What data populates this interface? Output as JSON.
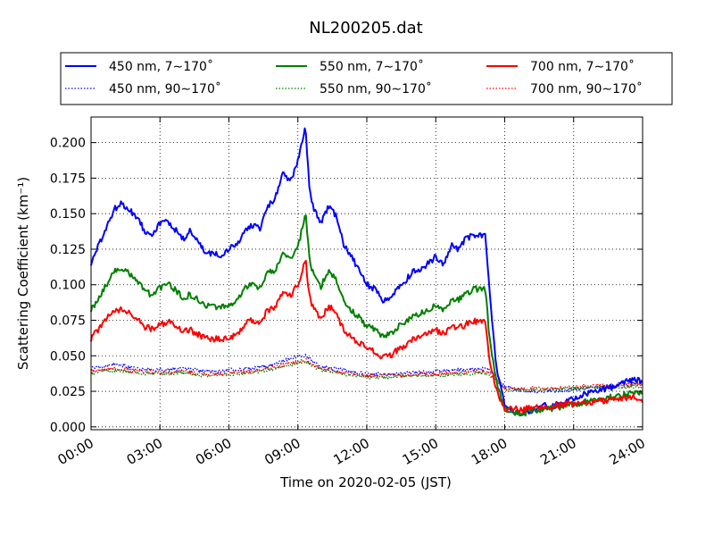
{
  "chart_data": {
    "type": "line",
    "title": "NL200205.dat",
    "xlabel": "Time on 2020-02-05 (JST)",
    "ylabel": "Scattering Coefficient (km⁻¹)",
    "xlim": [
      "00:00",
      "24:00"
    ],
    "ylim": [
      -0.002,
      0.218
    ],
    "x_ticks": [
      "00:00",
      "03:00",
      "06:00",
      "09:00",
      "12:00",
      "15:00",
      "18:00",
      "21:00",
      "24:00"
    ],
    "y_ticks": [
      "0.000",
      "0.025",
      "0.050",
      "0.075",
      "0.100",
      "0.125",
      "0.150",
      "0.175",
      "0.200"
    ],
    "grid": true,
    "legend_position": "top",
    "series": [
      {
        "name": "450 nm, 7∼170˚",
        "color": "#0000ff",
        "style": "solid",
        "x": [
          "00:00",
          "00:40",
          "01:00",
          "01:20",
          "02:00",
          "02:20",
          "02:40",
          "03:00",
          "03:20",
          "04:00",
          "04:20",
          "05:00",
          "05:40",
          "06:00",
          "06:20",
          "06:40",
          "07:00",
          "07:20",
          "07:40",
          "08:00",
          "08:20",
          "08:40",
          "09:00",
          "09:10",
          "09:20",
          "09:30",
          "09:40",
          "10:00",
          "10:20",
          "10:40",
          "11:00",
          "11:20",
          "11:40",
          "12:00",
          "12:20",
          "12:40",
          "13:00",
          "13:20",
          "13:40",
          "14:00",
          "14:20",
          "15:00",
          "15:20",
          "15:40",
          "16:00",
          "16:20",
          "16:40",
          "17:00",
          "17:10",
          "17:20",
          "17:40",
          "18:00",
          "18:20",
          "18:40",
          "19:00",
          "19:40",
          "20:00",
          "20:40",
          "21:00",
          "21:40",
          "22:00",
          "22:40",
          "23:00",
          "23:20",
          "23:40",
          "24:00"
        ],
        "y": [
          0.115,
          0.14,
          0.153,
          0.157,
          0.148,
          0.138,
          0.136,
          0.143,
          0.145,
          0.132,
          0.138,
          0.122,
          0.121,
          0.125,
          0.128,
          0.137,
          0.142,
          0.139,
          0.155,
          0.16,
          0.178,
          0.172,
          0.188,
          0.2,
          0.21,
          0.168,
          0.155,
          0.143,
          0.155,
          0.148,
          0.128,
          0.12,
          0.11,
          0.1,
          0.097,
          0.089,
          0.09,
          0.098,
          0.102,
          0.11,
          0.11,
          0.12,
          0.115,
          0.128,
          0.125,
          0.133,
          0.135,
          0.135,
          0.135,
          0.095,
          0.038,
          0.015,
          0.012,
          0.01,
          0.01,
          0.015,
          0.014,
          0.018,
          0.02,
          0.024,
          0.025,
          0.028,
          0.03,
          0.032,
          0.034,
          0.032
        ]
      },
      {
        "name": "450 nm, 90∼170˚",
        "color": "#0000ff",
        "style": "dotted",
        "x": [
          "00:00",
          "01:00",
          "02:00",
          "03:00",
          "04:00",
          "05:00",
          "06:00",
          "07:00",
          "08:00",
          "09:00",
          "09:20",
          "10:00",
          "11:00",
          "12:00",
          "13:00",
          "14:00",
          "15:00",
          "16:00",
          "17:00",
          "17:20",
          "18:00",
          "19:00",
          "20:00",
          "21:00",
          "22:00",
          "23:00",
          "24:00"
        ],
        "y": [
          0.041,
          0.044,
          0.041,
          0.04,
          0.041,
          0.039,
          0.04,
          0.041,
          0.044,
          0.05,
          0.05,
          0.042,
          0.04,
          0.037,
          0.037,
          0.038,
          0.039,
          0.04,
          0.041,
          0.04,
          0.028,
          0.025,
          0.025,
          0.026,
          0.028,
          0.03,
          0.032
        ]
      },
      {
        "name": "550 nm, 7∼170˚",
        "color": "#008000",
        "style": "solid",
        "x": [
          "00:00",
          "00:40",
          "01:00",
          "01:20",
          "02:00",
          "02:20",
          "02:40",
          "03:00",
          "03:20",
          "04:00",
          "04:20",
          "05:00",
          "05:40",
          "06:00",
          "06:20",
          "06:40",
          "07:00",
          "07:20",
          "07:40",
          "08:00",
          "08:20",
          "08:40",
          "09:00",
          "09:10",
          "09:20",
          "09:30",
          "09:40",
          "10:00",
          "10:20",
          "10:40",
          "11:00",
          "11:20",
          "11:40",
          "12:00",
          "12:20",
          "12:40",
          "13:00",
          "13:20",
          "13:40",
          "14:00",
          "14:20",
          "15:00",
          "15:20",
          "15:40",
          "16:00",
          "16:20",
          "16:40",
          "17:00",
          "17:10",
          "17:20",
          "17:40",
          "18:00",
          "18:20",
          "18:40",
          "19:00",
          "19:40",
          "20:00",
          "20:40",
          "21:00",
          "21:40",
          "22:00",
          "22:40",
          "23:00",
          "23:20",
          "23:40",
          "24:00"
        ],
        "y": [
          0.082,
          0.1,
          0.109,
          0.111,
          0.104,
          0.095,
          0.093,
          0.098,
          0.101,
          0.091,
          0.093,
          0.085,
          0.084,
          0.086,
          0.088,
          0.097,
          0.1,
          0.097,
          0.108,
          0.11,
          0.122,
          0.118,
          0.126,
          0.138,
          0.152,
          0.118,
          0.108,
          0.099,
          0.11,
          0.104,
          0.088,
          0.082,
          0.077,
          0.071,
          0.069,
          0.064,
          0.065,
          0.07,
          0.073,
          0.078,
          0.08,
          0.085,
          0.082,
          0.089,
          0.09,
          0.094,
          0.097,
          0.097,
          0.097,
          0.062,
          0.03,
          0.012,
          0.01,
          0.009,
          0.01,
          0.013,
          0.013,
          0.015,
          0.016,
          0.018,
          0.019,
          0.021,
          0.022,
          0.023,
          0.024,
          0.023
        ]
      },
      {
        "name": "550 nm, 90∼170˚",
        "color": "#008000",
        "style": "dotted",
        "x": [
          "00:00",
          "01:00",
          "02:00",
          "03:00",
          "04:00",
          "05:00",
          "06:00",
          "07:00",
          "08:00",
          "09:00",
          "09:20",
          "10:00",
          "11:00",
          "12:00",
          "13:00",
          "14:00",
          "15:00",
          "16:00",
          "17:00",
          "17:20",
          "18:00",
          "19:00",
          "20:00",
          "21:00",
          "22:00",
          "23:00",
          "24:00"
        ],
        "y": [
          0.038,
          0.04,
          0.038,
          0.037,
          0.038,
          0.036,
          0.037,
          0.038,
          0.041,
          0.045,
          0.046,
          0.04,
          0.037,
          0.035,
          0.035,
          0.036,
          0.036,
          0.037,
          0.038,
          0.037,
          0.026,
          0.026,
          0.026,
          0.027,
          0.028,
          0.028,
          0.029
        ]
      },
      {
        "name": "700 nm, 7∼170˚",
        "color": "#ff0000",
        "style": "solid",
        "x": [
          "00:00",
          "00:40",
          "01:00",
          "01:20",
          "02:00",
          "02:20",
          "02:40",
          "03:00",
          "03:20",
          "04:00",
          "04:20",
          "05:00",
          "05:40",
          "06:00",
          "06:20",
          "06:40",
          "07:00",
          "07:20",
          "07:40",
          "08:00",
          "08:20",
          "08:40",
          "09:00",
          "09:10",
          "09:20",
          "09:30",
          "09:40",
          "10:00",
          "10:20",
          "10:40",
          "11:00",
          "11:20",
          "11:40",
          "12:00",
          "12:20",
          "12:40",
          "13:00",
          "13:20",
          "13:40",
          "14:00",
          "14:20",
          "15:00",
          "15:20",
          "15:40",
          "16:00",
          "16:20",
          "16:40",
          "17:00",
          "17:10",
          "17:20",
          "17:40",
          "18:00",
          "18:20",
          "18:40",
          "19:00",
          "19:40",
          "20:00",
          "20:40",
          "21:00",
          "21:40",
          "22:00",
          "22:40",
          "23:00",
          "23:20",
          "23:40",
          "24:00"
        ],
        "y": [
          0.062,
          0.076,
          0.082,
          0.083,
          0.077,
          0.07,
          0.069,
          0.072,
          0.074,
          0.067,
          0.068,
          0.062,
          0.062,
          0.063,
          0.065,
          0.072,
          0.075,
          0.072,
          0.082,
          0.084,
          0.095,
          0.092,
          0.1,
          0.108,
          0.118,
          0.092,
          0.084,
          0.075,
          0.085,
          0.08,
          0.068,
          0.063,
          0.059,
          0.055,
          0.053,
          0.049,
          0.05,
          0.054,
          0.057,
          0.061,
          0.063,
          0.068,
          0.065,
          0.07,
          0.07,
          0.072,
          0.074,
          0.074,
          0.074,
          0.048,
          0.025,
          0.013,
          0.013,
          0.012,
          0.013,
          0.014,
          0.014,
          0.016,
          0.016,
          0.017,
          0.018,
          0.019,
          0.02,
          0.021,
          0.021,
          0.019
        ]
      },
      {
        "name": "700 nm, 90∼170˚",
        "color": "#ff0000",
        "style": "dotted",
        "x": [
          "00:00",
          "01:00",
          "02:00",
          "03:00",
          "04:00",
          "05:00",
          "06:00",
          "07:00",
          "08:00",
          "09:00",
          "09:20",
          "10:00",
          "11:00",
          "12:00",
          "13:00",
          "14:00",
          "15:00",
          "16:00",
          "17:00",
          "17:20",
          "18:00",
          "19:00",
          "20:00",
          "21:00",
          "22:00",
          "23:00",
          "24:00"
        ],
        "y": [
          0.039,
          0.041,
          0.039,
          0.038,
          0.039,
          0.037,
          0.038,
          0.039,
          0.042,
          0.046,
          0.047,
          0.041,
          0.038,
          0.036,
          0.036,
          0.037,
          0.037,
          0.038,
          0.039,
          0.038,
          0.027,
          0.027,
          0.027,
          0.028,
          0.029,
          0.029,
          0.03
        ]
      }
    ]
  }
}
